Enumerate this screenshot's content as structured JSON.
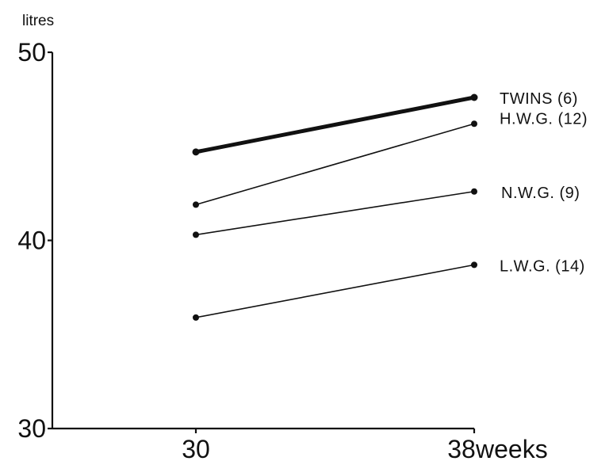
{
  "chart_data": {
    "type": "line",
    "ylabel": "litres",
    "xlabel": "weeks",
    "x": [
      30,
      38
    ],
    "x_tick_labels": [
      "30",
      "38"
    ],
    "ylim": [
      30,
      50
    ],
    "y_ticks": [
      30,
      40,
      50
    ],
    "y_tick_labels": [
      "30",
      "40",
      "50"
    ],
    "grid": false,
    "series": [
      {
        "name": "TWINS (6)",
        "values": [
          44.7,
          47.6
        ],
        "emphasis": "bold"
      },
      {
        "name": "H.W.G. (12)",
        "values": [
          41.9,
          46.2
        ]
      },
      {
        "name": "N.W.G. (9)",
        "values": [
          40.3,
          42.6
        ]
      },
      {
        "name": "L.W.G. (14)",
        "values": [
          35.9,
          38.7
        ]
      }
    ]
  }
}
